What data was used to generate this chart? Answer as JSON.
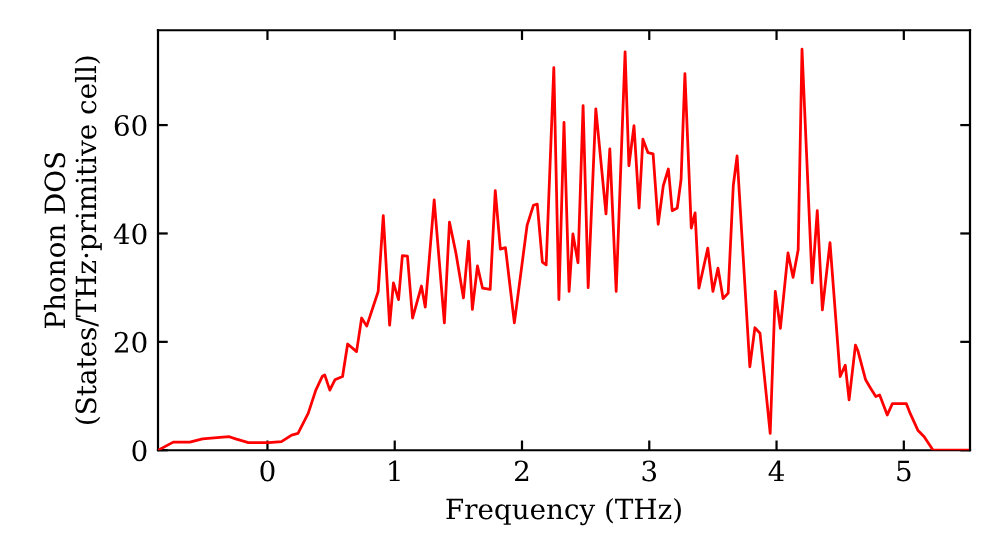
{
  "chart_data": {
    "type": "line",
    "xlabel": "Frequency (THz)",
    "ylabel": "Phonon DOS\n(States/THz·primitive cell)",
    "x": [
      -0.86,
      -0.74,
      -0.61,
      -0.51,
      -0.35,
      -0.3,
      -0.25,
      -0.15,
      0.01,
      0.11,
      0.19,
      0.24,
      0.32,
      0.38,
      0.43,
      0.45,
      0.49,
      0.53,
      0.59,
      0.63,
      0.7,
      0.74,
      0.78,
      0.87,
      0.91,
      0.96,
      0.99,
      1.03,
      1.06,
      1.1,
      1.14,
      1.21,
      1.24,
      1.31,
      1.39,
      1.43,
      1.48,
      1.54,
      1.58,
      1.61,
      1.65,
      1.69,
      1.75,
      1.79,
      1.83,
      1.87,
      1.94,
      2.04,
      2.09,
      2.12,
      2.16,
      2.19,
      2.25,
      2.29,
      2.33,
      2.37,
      2.4,
      2.44,
      2.48,
      2.52,
      2.58,
      2.66,
      2.69,
      2.74,
      2.81,
      2.84,
      2.88,
      2.92,
      2.95,
      2.99,
      3.03,
      3.07,
      3.11,
      3.15,
      3.18,
      3.22,
      3.25,
      3.28,
      3.33,
      3.36,
      3.39,
      3.46,
      3.5,
      3.54,
      3.58,
      3.62,
      3.66,
      3.69,
      3.79,
      3.83,
      3.87,
      3.95,
      3.99,
      4.03,
      4.09,
      4.13,
      4.17,
      4.2,
      4.28,
      4.32,
      4.36,
      4.42,
      4.5,
      4.54,
      4.57,
      4.62,
      4.64,
      4.7,
      4.74,
      4.78,
      4.81,
      4.87,
      4.91,
      5.02,
      5.05,
      5.11,
      5.16,
      5.23,
      5.5
    ],
    "series": [
      {
        "color": "#ff0000",
        "values": [
          0,
          1.5,
          1.5,
          2.1,
          2.4,
          2.5,
          2.1,
          1.4,
          1.4,
          1.6,
          2.8,
          3.1,
          6.8,
          11.1,
          13.6,
          13.9,
          11.1,
          13,
          13.6,
          19.6,
          18.2,
          24.4,
          22.9,
          29.3,
          43.3,
          23.1,
          30.9,
          27.8,
          35.9,
          35.8,
          24.4,
          30.3,
          26.4,
          46.2,
          23.5,
          42.1,
          36.5,
          28.1,
          38.6,
          26,
          34,
          29.9,
          29.7,
          47.9,
          37.1,
          37.4,
          23.5,
          41.5,
          45.2,
          45.4,
          34.7,
          34.2,
          70.6,
          27.8,
          60.5,
          29.3,
          39.9,
          34.6,
          63.6,
          30,
          63,
          43.6,
          55.6,
          29.3,
          73.5,
          52.5,
          59.9,
          44.7,
          57.4,
          54.9,
          54.7,
          41.7,
          48.8,
          51.9,
          44.2,
          44.7,
          50,
          69.5,
          41,
          43.8,
          29.9,
          37.3,
          29.3,
          33.6,
          28,
          29,
          48.8,
          54.3,
          15.4,
          22.6,
          21.6,
          3.1,
          29.3,
          22.5,
          36.4,
          31.9,
          37,
          74,
          30.9,
          44.2,
          25.9,
          38.3,
          13.6,
          15.7,
          9.3,
          19.4,
          18.3,
          13,
          11.4,
          9.9,
          10.2,
          6.5,
          8.6,
          8.6,
          6.8,
          3.7,
          2.5,
          0,
          0
        ]
      }
    ],
    "xlim": [
      -0.86,
      5.52
    ],
    "ylim": [
      0,
      77.5
    ],
    "xticks": [
      0,
      1,
      2,
      3,
      4,
      5
    ],
    "yticks": [
      0,
      20,
      40,
      60
    ],
    "grid": false,
    "legend": false,
    "marker": "none",
    "line_style": "solid"
  }
}
